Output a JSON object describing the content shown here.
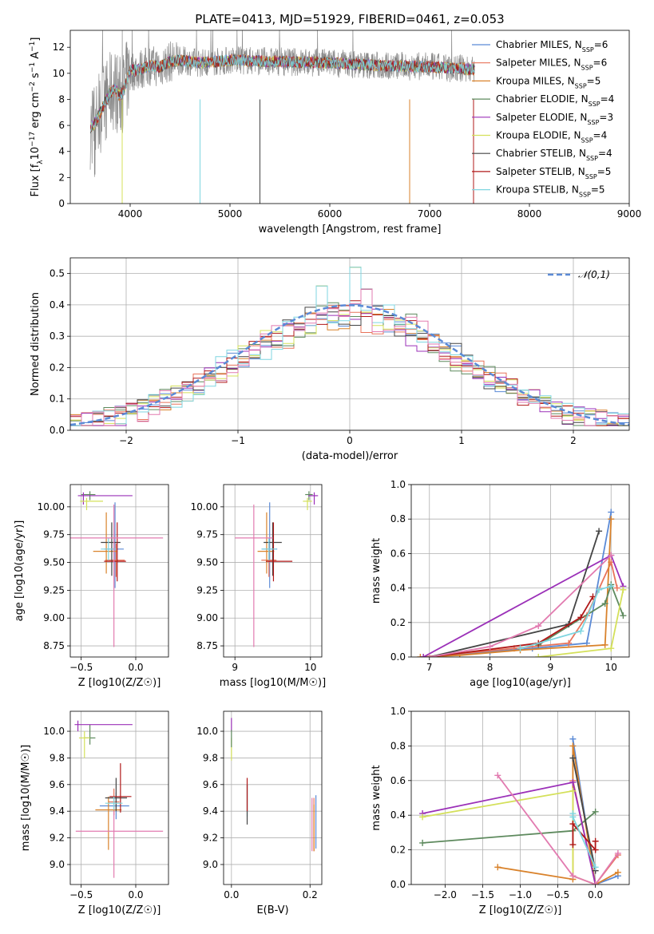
{
  "figure": {
    "title": "PLATE=0413, MJD=51929, FIBERID=0461, z=0.053"
  },
  "colors": {
    "Chabrier MILES": "#5b8ad6",
    "Salpeter MILES": "#e8735a",
    "Kroupa MILES": "#d9822b",
    "Chabrier ELODIE": "#5e8a5e",
    "Salpeter ELODIE": "#9b30b8",
    "Kroupa ELODIE": "#d4e05a",
    "Chabrier STELIB": "#444444",
    "Salpeter STELIB": "#b01818",
    "Kroupa STELIB": "#7fd6e0",
    "N01": "#5b8ad6",
    "pinkish": "#e27bb0"
  },
  "chart_data": [
    {
      "id": "spectrum",
      "type": "line",
      "title": "PLATE=0413, MJD=51929, FIBERID=0461, z=0.053",
      "xlabel": "wavelength [Angstrom, rest frame]",
      "ylabel": "Flux [f_λ 10^-17 erg cm^-2 s^-1 A^-1]",
      "xlim": [
        3400,
        9000
      ],
      "ylim": [
        0,
        13.3
      ],
      "xticks": [
        4000,
        5000,
        6000,
        7000,
        8000,
        9000
      ],
      "yticks": [
        0,
        2,
        4,
        6,
        8,
        10,
        12
      ],
      "data_range": [
        3600,
        7450
      ],
      "legend_position": "right",
      "legend": [
        {
          "name": "Chabrier MILES",
          "nssp": "6"
        },
        {
          "name": "Salpeter MILES",
          "nssp": "6"
        },
        {
          "name": "Kroupa MILES",
          "nssp": "5"
        },
        {
          "name": "Chabrier ELODIE",
          "nssp": "4"
        },
        {
          "name": "Salpeter ELODIE",
          "nssp": "3"
        },
        {
          "name": "Kroupa ELODIE",
          "nssp": "4"
        },
        {
          "name": "Chabrier STELIB",
          "nssp": "4"
        },
        {
          "name": "Salpeter STELIB",
          "nssp": "5"
        },
        {
          "name": "Kroupa STELIB",
          "nssp": "5"
        }
      ],
      "profile_x": [
        3600,
        3650,
        3700,
        3750,
        3800,
        3850,
        3900,
        3950,
        4000,
        4100,
        4200,
        4300,
        4400,
        4500,
        4700,
        5000,
        5500,
        6000,
        6500,
        7000,
        7450
      ],
      "profile_y": [
        5.8,
        6.2,
        7.0,
        7.8,
        8.5,
        8.8,
        8.2,
        9.0,
        10.2,
        10.3,
        10.6,
        10.5,
        10.9,
        11.0,
        10.8,
        11.0,
        10.9,
        10.8,
        10.6,
        10.5,
        10.3
      ]
    },
    {
      "id": "residuals",
      "type": "histogram",
      "xlabel": "(data-model)/error",
      "ylabel": "Normed distribution",
      "xlim": [
        -2.5,
        2.5
      ],
      "ylim": [
        0,
        0.55
      ],
      "xticks": [
        -2,
        -1,
        0,
        1,
        2
      ],
      "yticks": [
        0.0,
        0.1,
        0.2,
        0.3,
        0.4,
        0.5
      ],
      "legend": "𝒩(0,1)",
      "legend_position": "top-right",
      "bin_width": 0.1,
      "peak_bins": [
        {
          "x": -0.2,
          "y": 0.46
        },
        {
          "x": 0.1,
          "y": 0.52
        },
        {
          "x": 0.2,
          "y": 0.45
        }
      ]
    },
    {
      "id": "age_vs_Z",
      "type": "errorbar",
      "xlabel": "Z [log10(Z/Z☉)]",
      "ylabel": "age  [log10(age/yr)]",
      "xlim": [
        -0.6,
        0.3
      ],
      "ylim": [
        8.65,
        10.2
      ],
      "xticks": [
        -0.5,
        0.0
      ],
      "yticks": [
        8.75,
        9.0,
        9.25,
        9.5,
        9.75,
        10.0
      ],
      "points": [
        {
          "model": "Chabrier MILES",
          "x": -0.19,
          "y": 9.62,
          "xerr": [
            0.1,
            0.08
          ],
          "yerr": [
            0.35,
            0.42
          ]
        },
        {
          "model": "Salpeter MILES",
          "x": -0.18,
          "y": 9.52,
          "xerr": [
            0.1,
            0.08
          ],
          "yerr": [
            0.15,
            0.15
          ]
        },
        {
          "model": "Kroupa MILES",
          "x": -0.27,
          "y": 9.6,
          "xerr": [
            0.12,
            0.1
          ],
          "yerr": [
            0.2,
            0.35
          ]
        },
        {
          "model": "Chabrier ELODIE",
          "x": -0.42,
          "y": 10.11,
          "xerr": [
            0.08,
            0.05
          ],
          "yerr": [
            0.05,
            0.03
          ]
        },
        {
          "model": "Salpeter ELODIE",
          "x": -0.48,
          "y": 10.1,
          "xerr": [
            0.05,
            0.45
          ],
          "yerr": [
            0.08,
            0.03
          ]
        },
        {
          "model": "Kroupa ELODIE",
          "x": -0.45,
          "y": 10.05,
          "xerr": [
            0.06,
            0.15
          ],
          "yerr": [
            0.08,
            0.03
          ]
        },
        {
          "model": "Chabrier STELIB",
          "x": -0.22,
          "y": 9.68,
          "xerr": [
            0.1,
            0.08
          ],
          "yerr": [
            0.3,
            0.18
          ]
        },
        {
          "model": "Salpeter STELIB",
          "x": -0.17,
          "y": 9.51,
          "xerr": [
            0.12,
            0.08
          ],
          "yerr": [
            0.18,
            0.35
          ]
        },
        {
          "model": "Kroupa STELIB",
          "x": -0.25,
          "y": 9.62,
          "xerr": [
            0.07,
            0.07
          ],
          "yerr": [
            0.1,
            0.1
          ]
        },
        {
          "model": "pink",
          "x": -0.2,
          "y": 9.72,
          "xerr": [
            0.55,
            0.45
          ],
          "yerr": [
            0.98,
            0.3
          ]
        }
      ]
    },
    {
      "id": "age_vs_mass",
      "type": "errorbar",
      "xlabel": "mass [log10(M/M☉)]",
      "ylabel": "",
      "xlim": [
        8.85,
        10.15
      ],
      "ylim": [
        8.65,
        10.2
      ],
      "xticks": [
        9,
        10
      ],
      "yticks": [
        8.75,
        9.0,
        9.25,
        9.5,
        9.75,
        10.0
      ],
      "points": [
        {
          "model": "Chabrier MILES",
          "x": 9.46,
          "y": 9.62,
          "xerr": [
            0.1,
            0.1
          ],
          "yerr": [
            0.35,
            0.42
          ]
        },
        {
          "model": "Salpeter MILES",
          "x": 9.45,
          "y": 9.52,
          "xerr": [
            0.1,
            0.1
          ],
          "yerr": [
            0.15,
            0.15
          ]
        },
        {
          "model": "Kroupa MILES",
          "x": 9.42,
          "y": 9.6,
          "xerr": [
            0.12,
            0.1
          ],
          "yerr": [
            0.2,
            0.35
          ]
        },
        {
          "model": "Chabrier ELODIE",
          "x": 9.98,
          "y": 10.11,
          "xerr": [
            0.05,
            0.05
          ],
          "yerr": [
            0.05,
            0.03
          ]
        },
        {
          "model": "Salpeter ELODIE",
          "x": 10.05,
          "y": 10.1,
          "xerr": [
            0.08,
            0.05
          ],
          "yerr": [
            0.08,
            0.03
          ]
        },
        {
          "model": "Kroupa ELODIE",
          "x": 9.96,
          "y": 10.05,
          "xerr": [
            0.06,
            0.06
          ],
          "yerr": [
            0.08,
            0.03
          ]
        },
        {
          "model": "Chabrier STELIB",
          "x": 9.5,
          "y": 9.68,
          "xerr": [
            0.12,
            0.12
          ],
          "yerr": [
            0.3,
            0.18
          ]
        },
        {
          "model": "Salpeter STELIB",
          "x": 9.51,
          "y": 9.51,
          "xerr": [
            0.1,
            0.25
          ],
          "yerr": [
            0.18,
            0.35
          ]
        },
        {
          "model": "Kroupa STELIB",
          "x": 9.45,
          "y": 9.62,
          "xerr": [
            0.1,
            0.1
          ],
          "yerr": [
            0.1,
            0.1
          ]
        },
        {
          "model": "pink",
          "x": 9.25,
          "y": 9.72,
          "xerr": [
            0.25,
            0.25
          ],
          "yerr": [
            0.98,
            0.3
          ]
        }
      ]
    },
    {
      "id": "weight_vs_age",
      "type": "line",
      "xlabel": "age  [log10(age/yr)]",
      "ylabel": "mass weight",
      "xlim": [
        6.7,
        10.3
      ],
      "ylim": [
        0,
        1
      ],
      "xticks": [
        7,
        8,
        9,
        10
      ],
      "yticks": [
        0.0,
        0.2,
        0.4,
        0.6,
        0.8,
        1.0
      ],
      "series": [
        {
          "model": "Chabrier MILES",
          "x": [
            7.0,
            8.0,
            8.7,
            9.6,
            10.0
          ],
          "y": [
            0.0,
            0.03,
            0.05,
            0.08,
            0.84
          ]
        },
        {
          "model": "Salpeter MILES",
          "x": [
            6.9,
            8.4,
            9.3,
            9.6,
            10.0,
            10.1
          ],
          "y": [
            0.0,
            0.05,
            0.08,
            0.24,
            0.55,
            0.4
          ]
        },
        {
          "model": "Kroupa MILES",
          "x": [
            6.85,
            7.5,
            8.5,
            9.9,
            10.0
          ],
          "y": [
            0.0,
            0.01,
            0.04,
            0.07,
            0.8
          ]
        },
        {
          "model": "Chabrier ELODIE",
          "x": [
            8.8,
            9.9,
            10.0,
            10.2
          ],
          "y": [
            0.07,
            0.31,
            0.42,
            0.24
          ]
        },
        {
          "model": "Salpeter ELODIE",
          "x": [
            6.9,
            10.0,
            10.2
          ],
          "y": [
            0.0,
            0.59,
            0.41
          ]
        },
        {
          "model": "Kroupa ELODIE",
          "x": [
            8.8,
            10.0,
            10.2
          ],
          "y": [
            0.0,
            0.05,
            0.39
          ]
        },
        {
          "model": "Chabrier STELIB",
          "x": [
            7.0,
            9.3,
            9.8
          ],
          "y": [
            0.0,
            0.19,
            0.73
          ]
        },
        {
          "model": "Salpeter STELIB",
          "x": [
            7.0,
            8.8,
            9.5,
            9.7
          ],
          "y": [
            0.0,
            0.08,
            0.23,
            0.35
          ]
        },
        {
          "model": "Kroupa STELIB",
          "x": [
            8.5,
            9.5,
            9.8,
            10.0
          ],
          "y": [
            0.05,
            0.15,
            0.39,
            0.41
          ]
        },
        {
          "model": "pink",
          "x": [
            7.0,
            8.0,
            8.8,
            10.0
          ],
          "y": [
            0.0,
            0.06,
            0.18,
            0.59
          ]
        }
      ]
    },
    {
      "id": "mass_vs_Z",
      "type": "errorbar",
      "xlabel": "Z [log10(Z/Z☉)]",
      "ylabel": "mass [log10(M/M☉)]",
      "xlim": [
        -0.6,
        0.3
      ],
      "ylim": [
        8.85,
        10.15
      ],
      "xticks": [
        -0.5,
        0.0
      ],
      "yticks": [
        9.0,
        9.2,
        9.4,
        9.6,
        9.8,
        10.0
      ],
      "points": [
        {
          "model": "Chabrier MILES",
          "x": -0.18,
          "y": 9.44,
          "xerr": [
            0.15,
            0.12
          ],
          "yerr": [
            0.1,
            0.1
          ]
        },
        {
          "model": "Salpeter MILES",
          "x": -0.2,
          "y": 9.47,
          "xerr": [
            0.05,
            0.05
          ],
          "yerr": [
            0.1,
            0.1
          ]
        },
        {
          "model": "Kroupa MILES",
          "x": -0.25,
          "y": 9.41,
          "xerr": [
            0.12,
            0.12
          ],
          "yerr": [
            0.3,
            0.1
          ]
        },
        {
          "model": "Chabrier ELODIE",
          "x": -0.42,
          "y": 9.95,
          "xerr": [
            0.05,
            0.05
          ],
          "yerr": [
            0.05,
            0.1
          ]
        },
        {
          "model": "Salpeter ELODIE",
          "x": -0.53,
          "y": 10.05,
          "xerr": [
            0.03,
            0.5
          ],
          "yerr": [
            0.05,
            0.03
          ]
        },
        {
          "model": "Kroupa ELODIE",
          "x": -0.47,
          "y": 9.95,
          "xerr": [
            0.05,
            0.05
          ],
          "yerr": [
            0.15,
            0.05
          ]
        },
        {
          "model": "Chabrier STELIB",
          "x": -0.18,
          "y": 9.5,
          "xerr": [
            0.1,
            0.1
          ],
          "yerr": [
            0.1,
            0.15
          ]
        },
        {
          "model": "Salpeter STELIB",
          "x": -0.14,
          "y": 9.51,
          "xerr": [
            0.1,
            0.1
          ],
          "yerr": [
            0.12,
            0.25
          ]
        },
        {
          "model": "Kroupa STELIB",
          "x": -0.2,
          "y": 9.46,
          "xerr": [
            0.08,
            0.08
          ],
          "yerr": [
            0.05,
            0.05
          ]
        },
        {
          "model": "pink",
          "x": -0.2,
          "y": 9.25,
          "xerr": [
            0.35,
            0.45
          ],
          "yerr": [
            0.35,
            0.15
          ]
        }
      ]
    },
    {
      "id": "mass_vs_EBV",
      "type": "errorbar",
      "xlabel": "E(B-V)",
      "ylabel": "",
      "xlim": [
        -0.02,
        0.23
      ],
      "ylim": [
        8.85,
        10.15
      ],
      "xticks": [
        0.0,
        0.2
      ],
      "yticks": [
        9.0,
        9.2,
        9.4,
        9.6,
        9.8,
        10.0
      ],
      "points": [
        {
          "model": "Salpeter ELODIE",
          "x": 0.0,
          "y": 10.05,
          "xerr": [
            0,
            0
          ],
          "yerr": [
            0.05,
            0.05
          ]
        },
        {
          "model": "Kroupa ELODIE",
          "x": 0.0,
          "y": 9.9,
          "xerr": [
            0,
            0
          ],
          "yerr": [
            0.12,
            0.05
          ]
        },
        {
          "model": "Chabrier ELODIE",
          "x": 0.0,
          "y": 9.93,
          "xerr": [
            0,
            0
          ],
          "yerr": [
            0.05,
            0.08
          ]
        },
        {
          "model": "Kroupa STELIB",
          "x": 0.04,
          "y": 9.48,
          "xerr": [
            0,
            0
          ],
          "yerr": [
            0.12,
            0.12
          ]
        },
        {
          "model": "Chabrier STELIB",
          "x": 0.04,
          "y": 9.45,
          "xerr": [
            0,
            0
          ],
          "yerr": [
            0.15,
            0.15
          ]
        },
        {
          "model": "Salpeter STELIB",
          "x": 0.04,
          "y": 9.5,
          "xerr": [
            0,
            0
          ],
          "yerr": [
            0.1,
            0.15
          ]
        },
        {
          "model": "Salpeter MILES",
          "x": 0.21,
          "y": 9.3,
          "xerr": [
            0,
            0
          ],
          "yerr": [
            0.2,
            0.2
          ]
        },
        {
          "model": "Chabrier MILES",
          "x": 0.215,
          "y": 9.32,
          "xerr": [
            0,
            0
          ],
          "yerr": [
            0.2,
            0.2
          ]
        },
        {
          "model": "Kroupa MILES",
          "x": 0.21,
          "y": 9.25,
          "xerr": [
            0,
            0
          ],
          "yerr": [
            0.15,
            0.2
          ]
        },
        {
          "model": "pink",
          "x": 0.205,
          "y": 9.3,
          "xerr": [
            0,
            0
          ],
          "yerr": [
            0.2,
            0.2
          ]
        }
      ]
    },
    {
      "id": "weight_vs_Z",
      "type": "line",
      "xlabel": "Z [log10(Z/Z☉)]",
      "ylabel": "mass weight",
      "xlim": [
        -2.45,
        0.45
      ],
      "ylim": [
        0,
        1
      ],
      "xticks": [
        -2.0,
        -1.5,
        -1.0,
        -0.5,
        0.0
      ],
      "yticks": [
        0.0,
        0.2,
        0.4,
        0.6,
        0.8,
        1.0
      ],
      "series": [
        {
          "model": "Chabrier MILES",
          "x": [
            -0.3,
            0.0,
            0.3
          ],
          "y": [
            0.84,
            0.0,
            0.05
          ]
        },
        {
          "model": "Salpeter MILES",
          "x": [
            -0.3,
            0.0,
            0.3
          ],
          "y": [
            0.6,
            0.0,
            0.17
          ]
        },
        {
          "model": "Kroupa MILES",
          "x": [
            -1.3,
            -0.3,
            -0.3,
            0.0,
            0.3
          ],
          "y": [
            0.1,
            0.03,
            0.8,
            0.0,
            0.07
          ]
        },
        {
          "model": "Chabrier ELODIE",
          "x": [
            -2.3,
            -0.3,
            0.0
          ],
          "y": [
            0.24,
            0.31,
            0.42
          ]
        },
        {
          "model": "Salpeter ELODIE",
          "x": [
            -2.3,
            -0.3,
            0.0
          ],
          "y": [
            0.41,
            0.59,
            0.0
          ]
        },
        {
          "model": "Kroupa ELODIE",
          "x": [
            -2.3,
            -0.3,
            -0.3,
            0.0
          ],
          "y": [
            0.39,
            0.54,
            0.05,
            0.0
          ]
        },
        {
          "model": "Chabrier STELIB",
          "x": [
            -0.3,
            0.0
          ],
          "y": [
            0.73,
            0.08
          ]
        },
        {
          "model": "Salpeter STELIB",
          "x": [
            -0.3,
            -0.3,
            0.0,
            0.0
          ],
          "y": [
            0.23,
            0.35,
            0.2,
            0.25
          ]
        },
        {
          "model": "Kroupa STELIB",
          "x": [
            -0.3,
            -0.3,
            0.0
          ],
          "y": [
            0.41,
            0.39,
            0.1
          ]
        },
        {
          "model": "pink",
          "x": [
            -1.3,
            -0.3,
            0.0,
            0.3
          ],
          "y": [
            0.63,
            0.05,
            0.0,
            0.18
          ]
        }
      ]
    }
  ]
}
